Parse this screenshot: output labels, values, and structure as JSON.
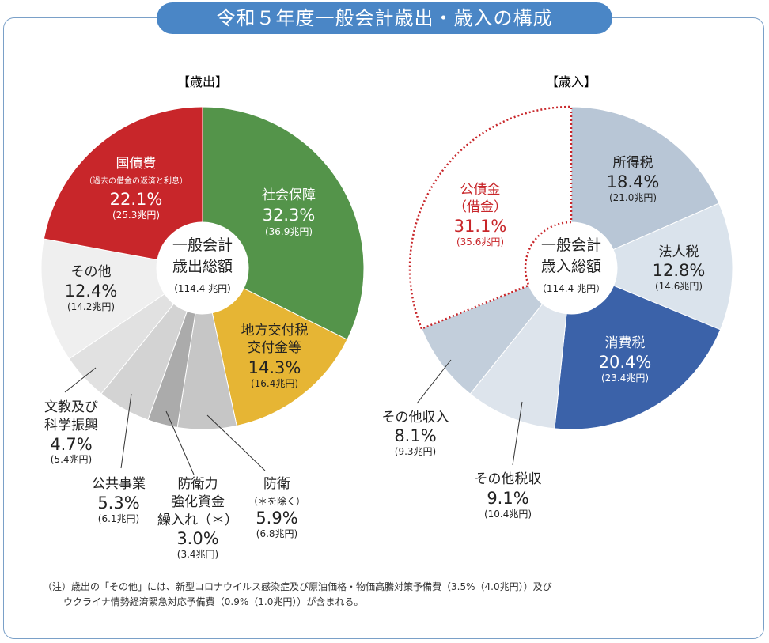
{
  "title": "令和５年度一般会計歳出・歳入の構成",
  "chart_data": [
    {
      "type": "pie",
      "title": "【歳出】",
      "center_lines": [
        "一般会計",
        "歳出総額"
      ],
      "center_total": "（114.4 兆円）",
      "slices": [
        {
          "name": "社会保障",
          "percent": 32.3,
          "pct_label": "32.3%",
          "amount_label": "(36.9兆円)",
          "color": "#54944a"
        },
        {
          "name": "地方交付税交付金等",
          "percent": 14.3,
          "pct_label": "14.3%",
          "amount_label": "(16.4兆円)",
          "color": "#e6b534"
        },
        {
          "name": "防衛（＊を除く）",
          "percent": 5.9,
          "pct_label": "5.9%",
          "amount_label": "(6.8兆円)",
          "color": "#c6c6c6"
        },
        {
          "name": "防衛力強化資金繰入れ(＊)",
          "percent": 3.0,
          "pct_label": "3.0%",
          "amount_label": "(3.4兆円)",
          "color": "#ababab"
        },
        {
          "name": "公共事業",
          "percent": 5.3,
          "pct_label": "5.3%",
          "amount_label": "(6.1兆円)",
          "color": "#d3d3d3"
        },
        {
          "name": "文教及び科学振興",
          "percent": 4.7,
          "pct_label": "4.7%",
          "amount_label": "(5.4兆円)",
          "color": "#e1e1e1"
        },
        {
          "name": "その他",
          "percent": 12.4,
          "pct_label": "12.4%",
          "amount_label": "(14.2兆円)",
          "color": "#efefef"
        },
        {
          "name": "国債費",
          "percent": 22.1,
          "pct_label": "22.1%",
          "amount_label": "(25.3兆円)",
          "sublabel": "（過去の借金の返済と利息）",
          "color": "#c8262a"
        }
      ]
    },
    {
      "type": "pie",
      "title": "【歳入】",
      "center_lines": [
        "一般会計",
        "歳入総額"
      ],
      "center_total": "（114.4 兆円）",
      "slices": [
        {
          "name": "所得税",
          "percent": 18.4,
          "pct_label": "18.4%",
          "amount_label": "(21.0兆円)",
          "color": "#b8c6d6"
        },
        {
          "name": "法人税",
          "percent": 12.8,
          "pct_label": "12.8%",
          "amount_label": "(14.6兆円)",
          "color": "#dae3ec"
        },
        {
          "name": "消費税",
          "percent": 20.4,
          "pct_label": "20.4%",
          "amount_label": "(23.4兆円)",
          "color": "#3b62a9"
        },
        {
          "name": "その他税収",
          "percent": 9.1,
          "pct_label": "9.1%",
          "amount_label": "(10.4兆円)",
          "color": "#dde4ec"
        },
        {
          "name": "その他収入",
          "percent": 8.1,
          "pct_label": "8.1%",
          "amount_label": "(9.3兆円)",
          "color": "#c2cedb"
        },
        {
          "name": "公債金（借金）",
          "percent": 31.1,
          "pct_label": "31.1%",
          "amount_label": "(35.6兆円)",
          "color": "#ffffff"
        }
      ]
    }
  ],
  "labels": {
    "shakai": "社会保障",
    "chiho_1": "地方交付税",
    "chiho_2": "交付金等",
    "bouei_1": "防衛",
    "bouei_2": "（＊を除く）",
    "kyoka_1": "防衛力",
    "kyoka_2": "強化資金",
    "kyoka_3": "繰入れ（＊）",
    "kokyo": "公共事業",
    "bunkyo_1": "文教及び",
    "bunkyo_2": "科学振興",
    "sonota_e": "その他",
    "kokusai": "国債費",
    "shotoku": "所得税",
    "hojin": "法人税",
    "shohi": "消費税",
    "sonota_zei": "その他税収",
    "sonota_shu": "その他収入",
    "kosai_1": "公債金",
    "kosai_2": "（借金）"
  },
  "note_line1": "（注）歳出の「その他」には、新型コロナウイルス感染症及び原油価格・物価高騰対策予備費（3.5%（4.0兆円））及び",
  "note_line2": "ウクライナ情勢経済緊急対応予備費（0.9%（1.0兆円））が含まれる。"
}
